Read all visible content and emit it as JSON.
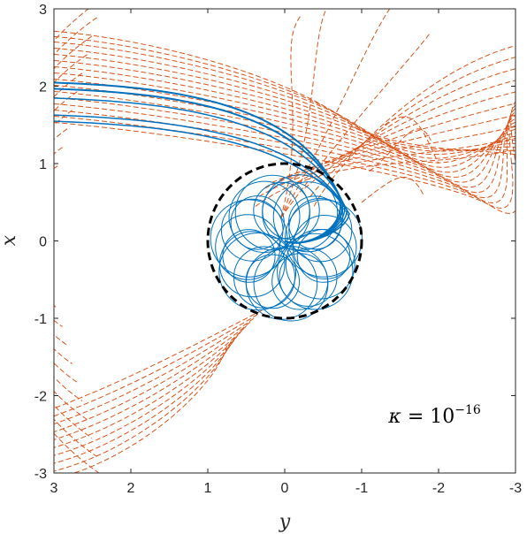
{
  "chart_data": {
    "type": "line",
    "title": "",
    "xlabel": "y",
    "ylabel": "x",
    "xlim": [
      3,
      -3
    ],
    "ylim": [
      -3,
      3
    ],
    "x_reversed": true,
    "x_ticks": [
      3,
      2,
      1,
      0,
      -1,
      -2,
      -3
    ],
    "x_tick_labels": [
      "3",
      "2",
      "1",
      "0",
      "-1",
      "-2",
      "-3"
    ],
    "y_ticks": [
      3,
      2,
      1,
      0,
      -1,
      -2,
      -3
    ],
    "y_tick_labels": [
      "3",
      "2",
      "1",
      "0",
      "-1",
      "-2",
      "-3"
    ],
    "grid": false,
    "legend": "none",
    "annotation": {
      "symbol": "κ",
      "equals": " = 10",
      "exponent": "−16",
      "position_data": [
        -1.35,
        -2.35
      ]
    },
    "colors": {
      "captured": "#0072BD",
      "escaping": "#D95319",
      "circle": "#000000",
      "axes": "#262626"
    },
    "reference_circle": {
      "center": [
        0,
        0
      ],
      "radius": 1,
      "style": "dashed",
      "color": "#000000"
    },
    "series": [
      {
        "style": "solid",
        "color": "#0072BD",
        "incoming_x0": [
          2.05,
          1.97,
          1.85,
          1.63,
          1.55
        ],
        "loop_count": 26
      },
      {
        "style": "dashed",
        "color": "#D95319",
        "near_x0": [
          2.72,
          2.65,
          2.58,
          2.5,
          2.42,
          2.34,
          2.26,
          2.18,
          2.1,
          2.02,
          1.94,
          1.86,
          1.78,
          1.7,
          1.62,
          1.54
        ],
        "outgoing_end_x": [
          2.55,
          2.4,
          2.25,
          2.1,
          1.95,
          1.8,
          1.65,
          1.5,
          1.35,
          1.2
        ],
        "far_arc_radius": [
          1.15,
          1.45,
          1.75,
          2.05,
          2.35,
          2.65,
          2.95,
          3.25,
          3.55,
          3.85
        ]
      }
    ]
  }
}
